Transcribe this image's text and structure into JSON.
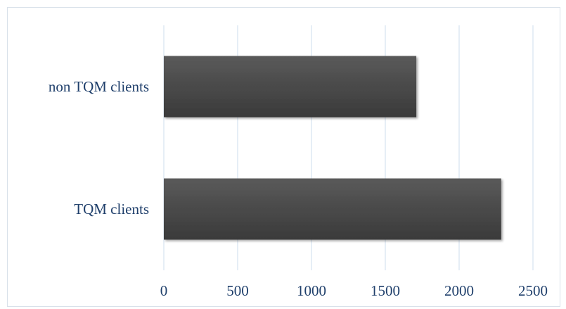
{
  "chart_data": {
    "type": "bar",
    "orientation": "horizontal",
    "categories": [
      "non TQM clients",
      "TQM clients"
    ],
    "values": [
      1710,
      2285
    ],
    "xlim": [
      0,
      2500
    ],
    "xticks": [
      0,
      500,
      1000,
      1500,
      2000,
      2500
    ],
    "title": "",
    "xlabel": "",
    "ylabel": "",
    "grid": "vertical",
    "legend": "none",
    "colors": {
      "bar_top": "#5a5a5a",
      "bar_bottom": "#3a3a3a",
      "gridline": "#d6e2ef",
      "text": "#1f3f6b"
    }
  }
}
